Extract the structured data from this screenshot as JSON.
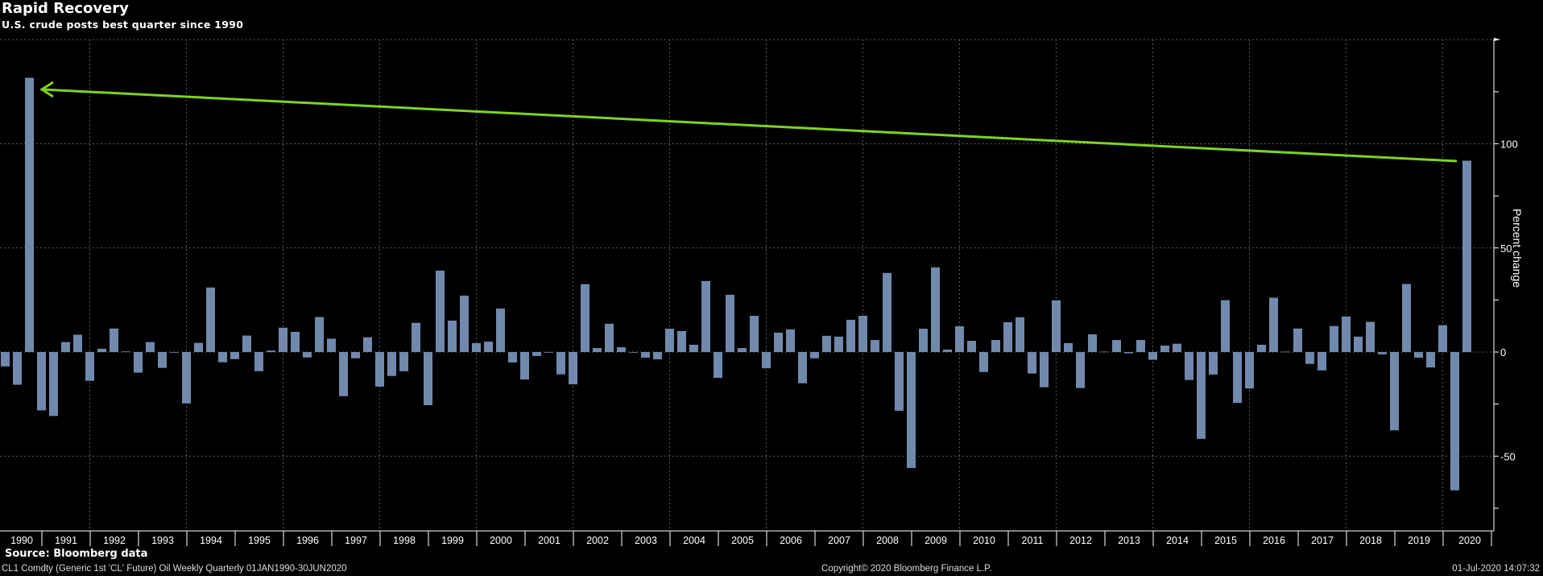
{
  "header": {
    "title": "Rapid Recovery",
    "subtitle": "U.S. crude posts best quarter since 1990"
  },
  "footer": {
    "source": "Source: Bloomberg data",
    "security": "CL1 Comdty (Generic 1st 'CL' Future) Oil Weekly  Quarterly 01JAN1990-30JUN2020",
    "copyright": "Copyright© 2020 Bloomberg Finance L.P.",
    "timestamp": "01-Jul-2020 14:07:32"
  },
  "colors": {
    "background": "#000000",
    "bar": "#7189ad",
    "arrow": "#7ed321",
    "grid": "#5a5a5a"
  },
  "chart_data": {
    "type": "bar",
    "title": "Rapid Recovery",
    "subtitle": "U.S. crude posts best quarter since 1990",
    "ylabel": "Percent change",
    "ylim": [
      -86,
      150
    ],
    "yticks": [
      100,
      50,
      0,
      -50
    ],
    "grid": true,
    "x_start": "1990-Q1",
    "x_end": "2020-Q2",
    "year_labels": [
      "1990",
      "1991",
      "1992",
      "1993",
      "1994",
      "1995",
      "1996",
      "1997",
      "1998",
      "1999",
      "2000",
      "2001",
      "2002",
      "2003",
      "2004",
      "2005",
      "2006",
      "2007",
      "2008",
      "2009",
      "2010",
      "2011",
      "2012",
      "2013",
      "2014",
      "2015",
      "2016",
      "2017",
      "2018",
      "2019",
      "2020"
    ],
    "values": [
      -6.9,
      -15.7,
      131.7,
      -28,
      -30.7,
      4.8,
      8.3,
      -13.8,
      1.6,
      11.3,
      0.3,
      -9.9,
      4.8,
      -7.6,
      -0.2,
      -24.7,
      4.4,
      31,
      -4.9,
      -3.4,
      7.9,
      -9.2,
      0.7,
      11.7,
      9.7,
      -2.6,
      16.8,
      6.4,
      -21.2,
      -3,
      7.1,
      -16.6,
      -11.5,
      -9.2,
      14,
      -25.5,
      39.1,
      15.1,
      27.1,
      4.3,
      5,
      20.9,
      -5,
      -13.2,
      -1.9,
      -0.2,
      -10.7,
      -15.5,
      32.6,
      1.9,
      13.6,
      2.3,
      -0.2,
      -2.7,
      -3.5,
      11.2,
      10.1,
      3.5,
      34.1,
      -12.4,
      27.5,
      1.9,
      17.4,
      -7.8,
      9.3,
      10.9,
      -15,
      -3,
      7.8,
      7.4,
      15.5,
      17.4,
      5.8,
      38,
      -28.2,
      -55.7,
      11.2,
      40.7,
      1.2,
      12.4,
      5.4,
      -9.6,
      5.8,
      14.3,
      16.7,
      -10.3,
      -16.9,
      24.8,
      4.3,
      -17.3,
      8.5,
      0.2,
      5.8,
      -0.6,
      5.8,
      -3.7,
      3.1,
      4,
      -13.4,
      -41.7,
      -10.8,
      24.9,
      -24.4,
      -17.5,
      3.5,
      26.1,
      0.2,
      11.3,
      -5.7,
      -8.8,
      12.5,
      17.1,
      7.4,
      14.5,
      -1.1,
      -37.6,
      32.7,
      -2.7,
      -7.4,
      12.9,
      -66.4,
      91.9
    ],
    "annotation": {
      "type": "arrow",
      "from": "2020-Q2",
      "to": "1990-Q3"
    }
  }
}
